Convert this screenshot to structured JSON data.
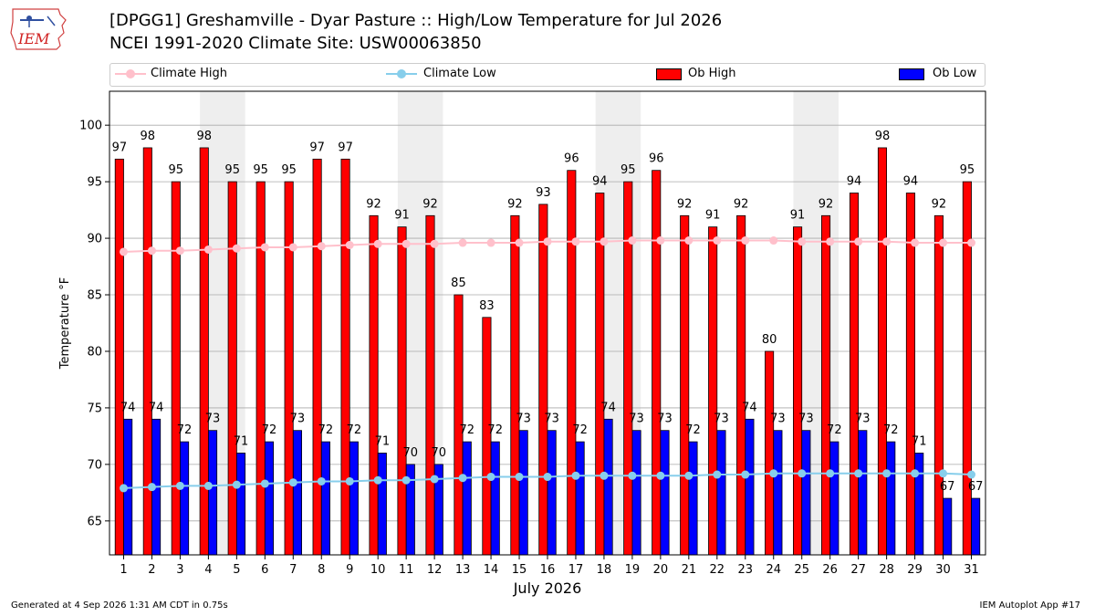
{
  "header": {
    "title_line1": "[DPGG1] Greshamville - Dyar Pasture :: High/Low Temperature for Jul 2026",
    "title_line2": "NCEI 1991-2020 Climate Site: USW00063850",
    "logo_text": "IEM"
  },
  "legend": {
    "climate_high": "Climate High",
    "climate_low": "Climate Low",
    "ob_high": "Ob High",
    "ob_low": "Ob Low",
    "placement": "top"
  },
  "colors": {
    "ob_high": "#ff0000",
    "ob_low": "#0000ff",
    "climate_high": "#ffc0cb",
    "climate_low": "#87ceeb",
    "weekend_shade": "#eeeeee",
    "grid": "#aaaaaa"
  },
  "chart_data": {
    "type": "bar",
    "xlabel": "July 2026",
    "ylabel": "Temperature °F",
    "ylim": [
      62,
      103
    ],
    "yticks": [
      65,
      70,
      75,
      80,
      85,
      90,
      95,
      100
    ],
    "grid": "horizontal",
    "categories": [
      "1",
      "2",
      "3",
      "4",
      "5",
      "6",
      "7",
      "8",
      "9",
      "10",
      "11",
      "12",
      "13",
      "14",
      "15",
      "16",
      "17",
      "18",
      "19",
      "20",
      "21",
      "22",
      "23",
      "24",
      "25",
      "26",
      "27",
      "28",
      "29",
      "30",
      "31"
    ],
    "shaded_days": [
      [
        4,
        5
      ],
      [
        11,
        12
      ],
      [
        18,
        19
      ],
      [
        25,
        26
      ]
    ],
    "series": [
      {
        "name": "Ob High",
        "kind": "bar",
        "values": [
          97,
          98,
          95,
          98,
          95,
          95,
          95,
          97,
          97,
          92,
          91,
          92,
          85,
          83,
          92,
          93,
          96,
          94,
          95,
          96,
          92,
          91,
          92,
          80,
          91,
          92,
          94,
          98,
          94,
          92,
          95
        ]
      },
      {
        "name": "Ob Low",
        "kind": "bar",
        "values": [
          74,
          74,
          72,
          73,
          71,
          72,
          73,
          72,
          72,
          71,
          70,
          70,
          72,
          72,
          73,
          73,
          72,
          74,
          73,
          73,
          72,
          73,
          74,
          73,
          73,
          72,
          73,
          72,
          71,
          67,
          67
        ]
      },
      {
        "name": "Climate High",
        "kind": "line",
        "values": [
          88.8,
          88.9,
          88.9,
          89.0,
          89.1,
          89.2,
          89.2,
          89.3,
          89.4,
          89.5,
          89.5,
          89.5,
          89.6,
          89.6,
          89.6,
          89.7,
          89.7,
          89.7,
          89.8,
          89.8,
          89.8,
          89.8,
          89.8,
          89.8,
          89.7,
          89.7,
          89.7,
          89.7,
          89.6,
          89.6,
          89.6
        ]
      },
      {
        "name": "Climate Low",
        "kind": "line",
        "values": [
          67.9,
          68.0,
          68.1,
          68.1,
          68.2,
          68.3,
          68.4,
          68.5,
          68.5,
          68.6,
          68.6,
          68.7,
          68.8,
          68.9,
          68.9,
          68.9,
          69.0,
          69.0,
          69.0,
          69.0,
          69.0,
          69.1,
          69.1,
          69.2,
          69.2,
          69.2,
          69.2,
          69.2,
          69.2,
          69.2,
          69.1
        ]
      }
    ]
  },
  "footer": {
    "left": "Generated at 4 Sep 2026 1:31 AM CDT in 0.75s",
    "right": "IEM Autoplot App #17"
  }
}
